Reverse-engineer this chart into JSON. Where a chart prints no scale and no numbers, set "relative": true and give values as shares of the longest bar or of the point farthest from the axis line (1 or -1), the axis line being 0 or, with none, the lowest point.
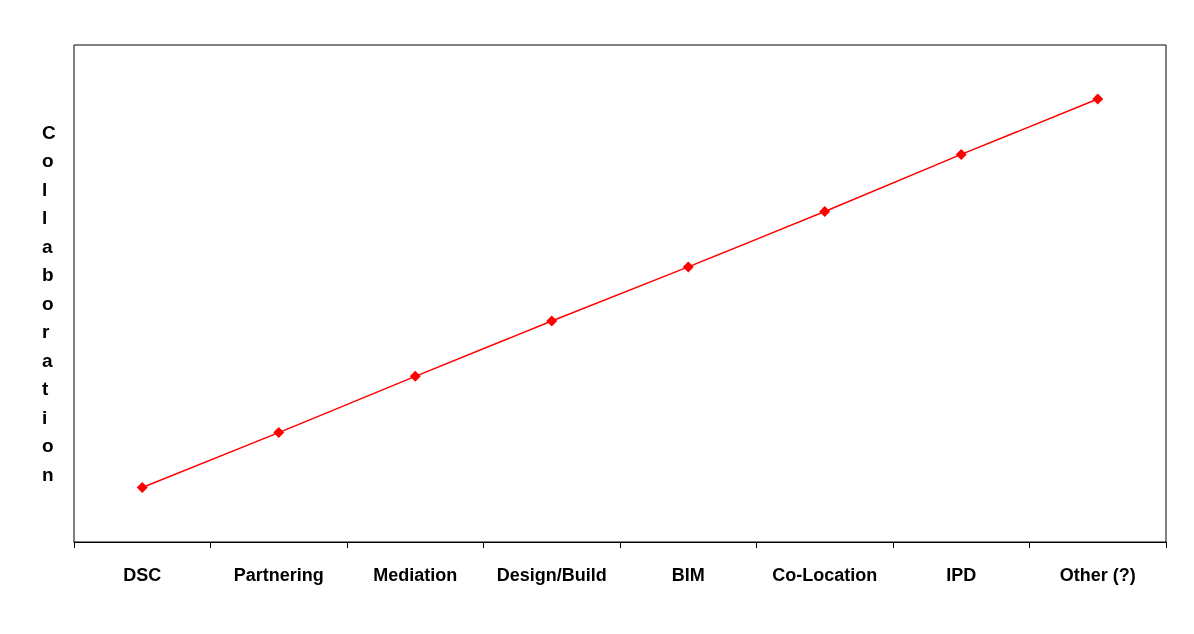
{
  "chart_data": {
    "type": "line",
    "ylabel": "Collaboration",
    "categories": [
      "DSC",
      "Partnering",
      "Mediation",
      "Design/Build",
      "BIM",
      "Co-Location",
      "IPD",
      "Other (?)"
    ],
    "series": [
      {
        "color": "#ff0000",
        "values": [
          0.123,
          0.247,
          0.374,
          0.499,
          0.621,
          0.746,
          0.875,
          1
        ]
      }
    ],
    "relative": true,
    "marker": "diamond",
    "line_style": "solid",
    "grid": false
  }
}
